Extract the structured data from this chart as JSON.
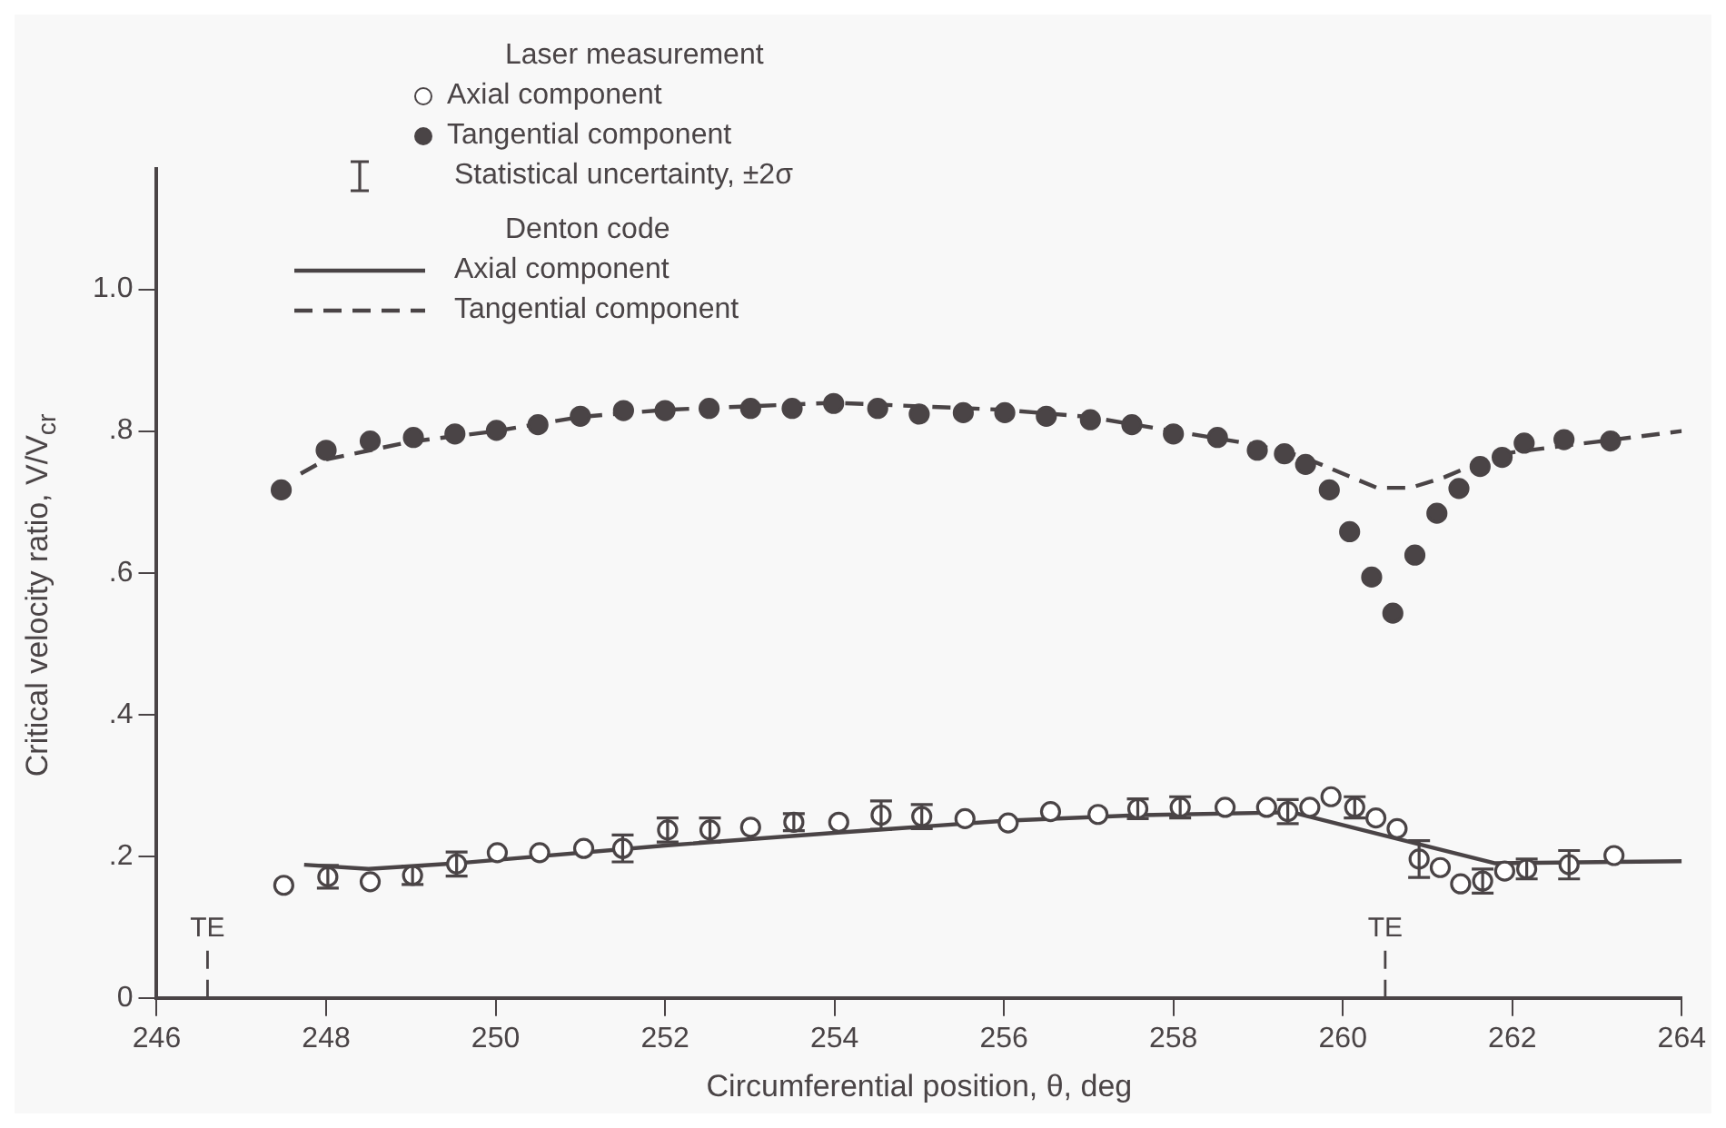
{
  "chart_data": {
    "type": "scatter",
    "xlabel": "Circumferential position, θ, deg",
    "ylabel": "Critical velocity ratio, V/V$_{cr}$",
    "legend_title": "Laser measurement",
    "annotations": [
      "Statistical uncertainty, ±2σ",
      "Denton code"
    ],
    "xlim": [
      246,
      264
    ],
    "xticks": [
      246,
      248,
      250,
      252,
      254,
      256,
      258,
      260,
      262,
      264
    ],
    "ylim": [
      0,
      1.17
    ],
    "yticks": [
      0,
      {
        "value": 0.2,
        "label": ".2"
      },
      {
        "value": 0.4,
        "label": ".4"
      },
      {
        "value": 0.6,
        "label": ".6"
      },
      {
        "value": 0.8,
        "label": ".8"
      },
      {
        "value": 1.0,
        "label": "1.0"
      }
    ],
    "grid": false,
    "legend": "top",
    "ref_lines": [
      {
        "axis": "x",
        "value": 246.6,
        "label": "TE",
        "line_style": "dashed"
      },
      {
        "axis": "x",
        "value": 260.5,
        "label": "TE",
        "line_style": "dashed"
      }
    ],
    "series": [
      {
        "name": "Axial component",
        "type": "scatter",
        "color": "#4a4446",
        "marker": "circle",
        "x": [
          247.5,
          248.02,
          248.52,
          249.02,
          249.54,
          250.02,
          250.52,
          251.04,
          251.5,
          252.03,
          252.53,
          253.01,
          253.52,
          254.05,
          254.55,
          255.03,
          255.54,
          256.05,
          256.55,
          257.11,
          257.58,
          258.08,
          258.61,
          259.1,
          259.35,
          259.61,
          259.86,
          260.14,
          260.39,
          260.64,
          260.9,
          261.15,
          261.39,
          261.65,
          261.91,
          262.17,
          262.67,
          263.2
        ],
        "values": [
          0.159,
          0.171,
          0.164,
          0.173,
          0.189,
          0.205,
          0.205,
          0.211,
          0.211,
          0.237,
          0.237,
          0.241,
          0.248,
          0.248,
          0.258,
          0.256,
          0.253,
          0.247,
          0.263,
          0.259,
          0.267,
          0.269,
          0.269,
          0.269,
          0.263,
          0.269,
          0.284,
          0.269,
          0.254,
          0.239,
          0.196,
          0.184,
          0.161,
          0.165,
          0.179,
          0.182,
          0.188,
          0.201
        ],
        "errors": [
          null,
          0.016,
          null,
          0.013,
          0.017,
          null,
          null,
          null,
          0.019,
          0.017,
          0.017,
          null,
          0.012,
          null,
          0.02,
          0.017,
          null,
          null,
          null,
          null,
          0.014,
          0.015,
          null,
          null,
          0.017,
          null,
          null,
          0.015,
          null,
          null,
          0.026,
          null,
          null,
          0.017,
          null,
          0.014,
          0.02,
          null
        ]
      },
      {
        "name": "Tangential component",
        "type": "scatter",
        "color": "#4a4446",
        "marker": "circle",
        "x": [
          247.47,
          248.0,
          248.52,
          249.03,
          249.52,
          250.01,
          250.5,
          251.0,
          251.51,
          252.0,
          252.52,
          253.01,
          253.5,
          253.99,
          254.51,
          255.0,
          255.52,
          256.01,
          256.5,
          257.02,
          257.51,
          258.0,
          258.52,
          258.99,
          259.31,
          259.56,
          259.84,
          260.08,
          260.34,
          260.59,
          260.85,
          261.11,
          261.37,
          261.62,
          261.88,
          262.14,
          262.61,
          263.16
        ],
        "values": [
          0.717,
          0.773,
          0.786,
          0.791,
          0.796,
          0.801,
          0.809,
          0.821,
          0.829,
          0.829,
          0.832,
          0.832,
          0.832,
          0.839,
          0.832,
          0.824,
          0.826,
          0.826,
          0.821,
          0.816,
          0.809,
          0.796,
          0.791,
          0.773,
          0.768,
          0.753,
          0.717,
          0.658,
          0.594,
          0.543,
          0.625,
          0.684,
          0.719,
          0.75,
          0.763,
          0.783,
          0.788,
          0.786
        ]
      },
      {
        "name": "Axial component",
        "type": "line",
        "color": "#4a4446",
        "line_style": "solid",
        "marker": "none",
        "x": [
          247.74,
          248.5,
          249.54,
          252,
          254,
          256,
          257.6,
          259.4,
          261.8,
          264
        ],
        "values": [
          0.188,
          0.182,
          0.19,
          0.215,
          0.233,
          0.25,
          0.258,
          0.262,
          0.19,
          0.193
        ]
      },
      {
        "name": "Tangential component",
        "type": "line",
        "color": "#4a4446",
        "line_style": "dashed",
        "marker": "none",
        "x": [
          247.7,
          248,
          249,
          250,
          251,
          252,
          253,
          254,
          255,
          256,
          257,
          258,
          259,
          259.5,
          260,
          260.4,
          260.8,
          261.2,
          261.6,
          262,
          263,
          264
        ],
        "values": [
          0.74,
          0.76,
          0.785,
          0.8,
          0.82,
          0.83,
          0.835,
          0.84,
          0.835,
          0.83,
          0.82,
          0.8,
          0.78,
          0.765,
          0.74,
          0.72,
          0.72,
          0.735,
          0.755,
          0.77,
          0.785,
          0.8
        ]
      }
    ]
  }
}
